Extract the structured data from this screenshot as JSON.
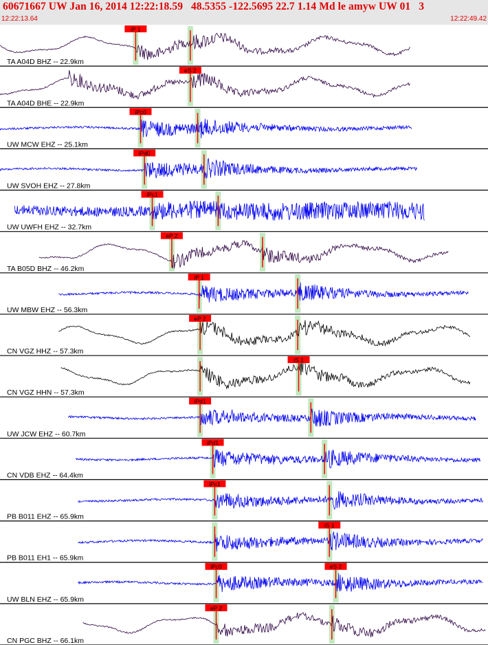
{
  "header": {
    "title": "60671667 UW Jan 16, 2014 12:22:18.59   48.5355 -122.5695 22.7 1.14 Md le amyw UW 01   3",
    "time_start": "12:22:13.64",
    "time_end": "12:22:49.42"
  },
  "colors": {
    "header_bg": "#e6e6e6",
    "header_text": "#e00000",
    "trace_blue": "#0000ee",
    "trace_purple": "#2a0040",
    "trace_black": "#000000",
    "pick_flag": "#ff0000",
    "pick_window": "#b7e4b4",
    "divider": "#000000"
  },
  "chart_data": {
    "type": "seismogram",
    "title": "60671667 UW Jan 16, 2014 12:22:18.59   48.5355 -122.5695 22.7 1.14 Md le amyw UW 01   3",
    "time_start": "12:22:13.64",
    "time_end": "12:22:49.42",
    "traces": [
      {
        "label": "TA A04D BHZ -- 22.9km",
        "station": "A04D",
        "channel": "BHZ",
        "distance_km": 22.9,
        "color": "purple",
        "waveform": "broadband",
        "start_frac": 0.0,
        "end_frac": 0.84,
        "picks": [
          {
            "label": "iP 1",
            "phase": "P",
            "t_frac": 0.278
          },
          {
            "label": "",
            "phase": "S",
            "t_frac": 0.39
          }
        ]
      },
      {
        "label": "TA A04D BHE -- 22.9km",
        "station": "A04D",
        "channel": "BHE",
        "distance_km": 22.9,
        "color": "purple",
        "waveform": "broadband",
        "start_frac": 0.0,
        "end_frac": 0.84,
        "picks": [
          {
            "label": "eS 2",
            "phase": "S",
            "t_frac": 0.39
          }
        ]
      },
      {
        "label": "UW MCW EHZ -- 25.1km",
        "station": "MCW",
        "channel": "EHZ",
        "distance_km": 25.1,
        "color": "blue",
        "waveform": "short",
        "start_frac": 0.0,
        "end_frac": 0.845,
        "picks": [
          {
            "label": "iPc0",
            "phase": "P",
            "t_frac": 0.288
          },
          {
            "label": "",
            "phase": "S",
            "t_frac": 0.405
          }
        ]
      },
      {
        "label": "UW SVOH EHZ -- 27.8km",
        "station": "SVOH",
        "channel": "EHZ",
        "distance_km": 27.8,
        "color": "blue",
        "waveform": "short",
        "start_frac": 0.0,
        "end_frac": 0.855,
        "picks": [
          {
            "label": "iPd0",
            "phase": "P",
            "t_frac": 0.296
          },
          {
            "label": "",
            "phase": "S",
            "t_frac": 0.418
          }
        ]
      },
      {
        "label": "UW UWFH EHZ -- 32.7km",
        "station": "UWFH",
        "channel": "EHZ",
        "distance_km": 32.7,
        "color": "blue",
        "waveform": "strong",
        "start_frac": 0.03,
        "end_frac": 0.87,
        "picks": [
          {
            "label": "iPc1",
            "phase": "P",
            "t_frac": 0.312
          },
          {
            "label": "",
            "phase": "S",
            "t_frac": 0.447
          }
        ]
      },
      {
        "label": "TA B05D BHZ -- 46.2km",
        "station": "B05D",
        "channel": "BHZ",
        "distance_km": 46.2,
        "color": "purple",
        "waveform": "broadband",
        "start_frac": 0.08,
        "end_frac": 0.92,
        "picks": [
          {
            "label": "eP 2",
            "phase": "P",
            "t_frac": 0.352
          },
          {
            "label": "",
            "phase": "S",
            "t_frac": 0.538
          }
        ]
      },
      {
        "label": "UW MBW EHZ -- 56.3km",
        "station": "MBW",
        "channel": "EHZ",
        "distance_km": 56.3,
        "color": "blue",
        "waveform": "short",
        "start_frac": 0.12,
        "end_frac": 0.96,
        "picks": [
          {
            "label": "iP 1",
            "phase": "P",
            "t_frac": 0.408
          },
          {
            "label": "",
            "phase": "S",
            "t_frac": 0.61
          }
        ]
      },
      {
        "label": "CN VGZ HHZ -- 57.3km",
        "station": "VGZ",
        "channel": "HHZ",
        "distance_km": 57.3,
        "color": "black",
        "waveform": "broadband",
        "start_frac": 0.12,
        "end_frac": 0.965,
        "picks": [
          {
            "label": "eP 2",
            "phase": "P",
            "t_frac": 0.41
          },
          {
            "label": "",
            "phase": "S",
            "t_frac": 0.61
          }
        ]
      },
      {
        "label": "CN VGZ HHN -- 57.3km",
        "station": "VGZ",
        "channel": "HHN",
        "distance_km": 57.3,
        "color": "black",
        "waveform": "broadband",
        "start_frac": 0.125,
        "end_frac": 0.965,
        "picks": [
          {
            "label": "",
            "phase": "P",
            "t_frac": 0.41
          },
          {
            "label": "iS 1",
            "phase": "S",
            "t_frac": 0.612
          }
        ]
      },
      {
        "label": "UW JCW EHZ -- 60.7km",
        "station": "JCW",
        "channel": "EHZ",
        "distance_km": 60.7,
        "color": "blue",
        "waveform": "short",
        "start_frac": 0.14,
        "end_frac": 0.975,
        "picks": [
          {
            "label": "iPd1",
            "phase": "P",
            "t_frac": 0.41
          },
          {
            "label": "",
            "phase": "S",
            "t_frac": 0.637
          }
        ]
      },
      {
        "label": "CN VDB EHZ -- 64.4km",
        "station": "VDB",
        "channel": "EHZ",
        "distance_km": 64.4,
        "color": "blue",
        "waveform": "short",
        "start_frac": 0.155,
        "end_frac": 0.985,
        "picks": [
          {
            "label": "iPd1",
            "phase": "P",
            "t_frac": 0.436
          },
          {
            "label": "",
            "phase": "S",
            "t_frac": 0.665
          }
        ]
      },
      {
        "label": "PB B011 EHZ -- 65.9km",
        "station": "B011",
        "channel": "EHZ",
        "distance_km": 65.9,
        "color": "blue",
        "waveform": "short",
        "start_frac": 0.16,
        "end_frac": 0.99,
        "picks": [
          {
            "label": "iPc1",
            "phase": "P",
            "t_frac": 0.44
          },
          {
            "label": "",
            "phase": "S",
            "t_frac": 0.675
          }
        ]
      },
      {
        "label": "PB B011 EH1 -- 65.9km",
        "station": "B011",
        "channel": "EH1",
        "distance_km": 65.9,
        "color": "blue",
        "waveform": "short",
        "start_frac": 0.16,
        "end_frac": 0.99,
        "picks": [
          {
            "label": "",
            "phase": "P",
            "t_frac": 0.44
          },
          {
            "label": "iS 1",
            "phase": "S",
            "t_frac": 0.675
          }
        ]
      },
      {
        "label": "UW BLN EHZ -- 65.9km",
        "station": "BLN",
        "channel": "EHZ",
        "distance_km": 65.9,
        "color": "blue",
        "waveform": "short",
        "start_frac": 0.16,
        "end_frac": 0.99,
        "picks": [
          {
            "label": "iPc0",
            "phase": "P",
            "t_frac": 0.443
          },
          {
            "label": "eS 2",
            "phase": "S",
            "t_frac": 0.688
          }
        ]
      },
      {
        "label": "CN PGC BHZ -- 66.1km",
        "station": "PGC",
        "channel": "BHZ",
        "distance_km": 66.1,
        "color": "purple",
        "waveform": "broadband",
        "start_frac": 0.17,
        "end_frac": 0.995,
        "picks": [
          {
            "label": "eP 2",
            "phase": "P",
            "t_frac": 0.443
          },
          {
            "label": "",
            "phase": "S",
            "t_frac": 0.68
          }
        ]
      }
    ]
  }
}
